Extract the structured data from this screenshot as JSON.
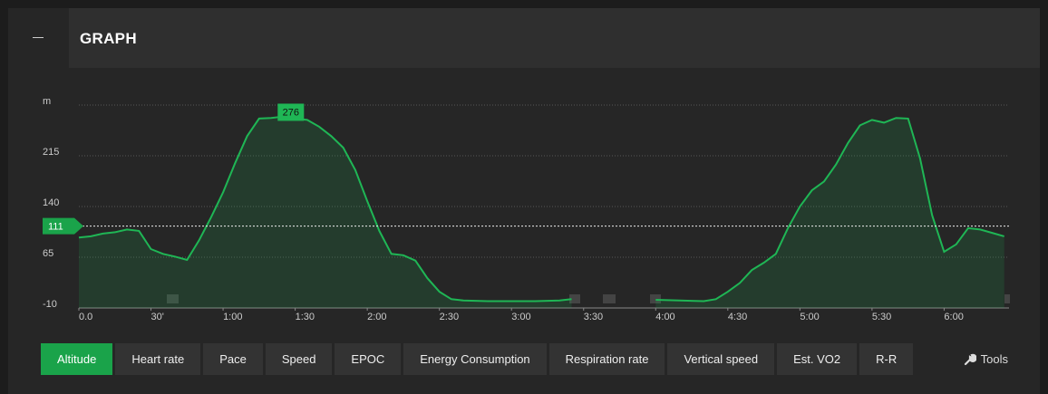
{
  "header": {
    "title": "GRAPH"
  },
  "chart_data": {
    "type": "area",
    "x": [
      0,
      5,
      10,
      15,
      20,
      25,
      30,
      35,
      40,
      45,
      50,
      55,
      60,
      65,
      70,
      75,
      80,
      85,
      88,
      90,
      95,
      100,
      105,
      110,
      115,
      120,
      125,
      130,
      135,
      140,
      145,
      150,
      155,
      160,
      170,
      180,
      190,
      200,
      205,
      220,
      240,
      250,
      260,
      265,
      270,
      275,
      280,
      285,
      290,
      295,
      300,
      305,
      310,
      315,
      320,
      325,
      330,
      335,
      340,
      345,
      350,
      355,
      360,
      365,
      370,
      375,
      380,
      385
    ],
    "values": [
      94,
      96,
      100,
      102,
      106,
      104,
      77,
      70,
      66,
      61,
      90,
      124,
      161,
      204,
      244,
      270,
      271,
      273,
      276,
      270,
      268,
      258,
      244,
      227,
      194,
      148,
      104,
      70,
      68,
      60,
      34,
      14,
      3,
      1,
      0,
      0,
      0,
      1,
      3,
      null,
      2,
      1,
      0,
      3,
      14,
      27,
      46,
      57,
      70,
      108,
      140,
      164,
      177,
      202,
      234,
      260,
      268,
      264,
      271,
      270,
      211,
      127,
      73,
      84,
      108,
      106,
      101,
      96
    ],
    "color": "#1fb655",
    "xlim": [
      0,
      387
    ],
    "xticks": [
      {
        "value": 0,
        "label": "0.0"
      },
      {
        "value": 30,
        "label": "30'"
      },
      {
        "value": 60,
        "label": "1:00"
      },
      {
        "value": 90,
        "label": "1:30"
      },
      {
        "value": 120,
        "label": "2:00"
      },
      {
        "value": 150,
        "label": "2:30"
      },
      {
        "value": 180,
        "label": "3:00"
      },
      {
        "value": 210,
        "label": "3:30"
      },
      {
        "value": 240,
        "label": "4:00"
      },
      {
        "value": 270,
        "label": "4:30"
      },
      {
        "value": 300,
        "label": "5:00"
      },
      {
        "value": 330,
        "label": "5:30"
      },
      {
        "value": 360,
        "label": "6:00"
      }
    ],
    "ylim": [
      -10,
      290
    ],
    "yticks": [
      -10,
      65,
      140,
      215,
      {
        "value": 290,
        "label": "m"
      }
    ],
    "grid": true,
    "reference_line": 111,
    "peak": {
      "x": 88,
      "value": 276
    }
  },
  "tabs": [
    "Altitude",
    "Heart rate",
    "Pace",
    "Speed",
    "EPOC",
    "Energy Consumption",
    "Respiration rate",
    "Vertical speed",
    "Est. VO2",
    "R-R"
  ],
  "active_tab": 0,
  "tools": "Tools"
}
